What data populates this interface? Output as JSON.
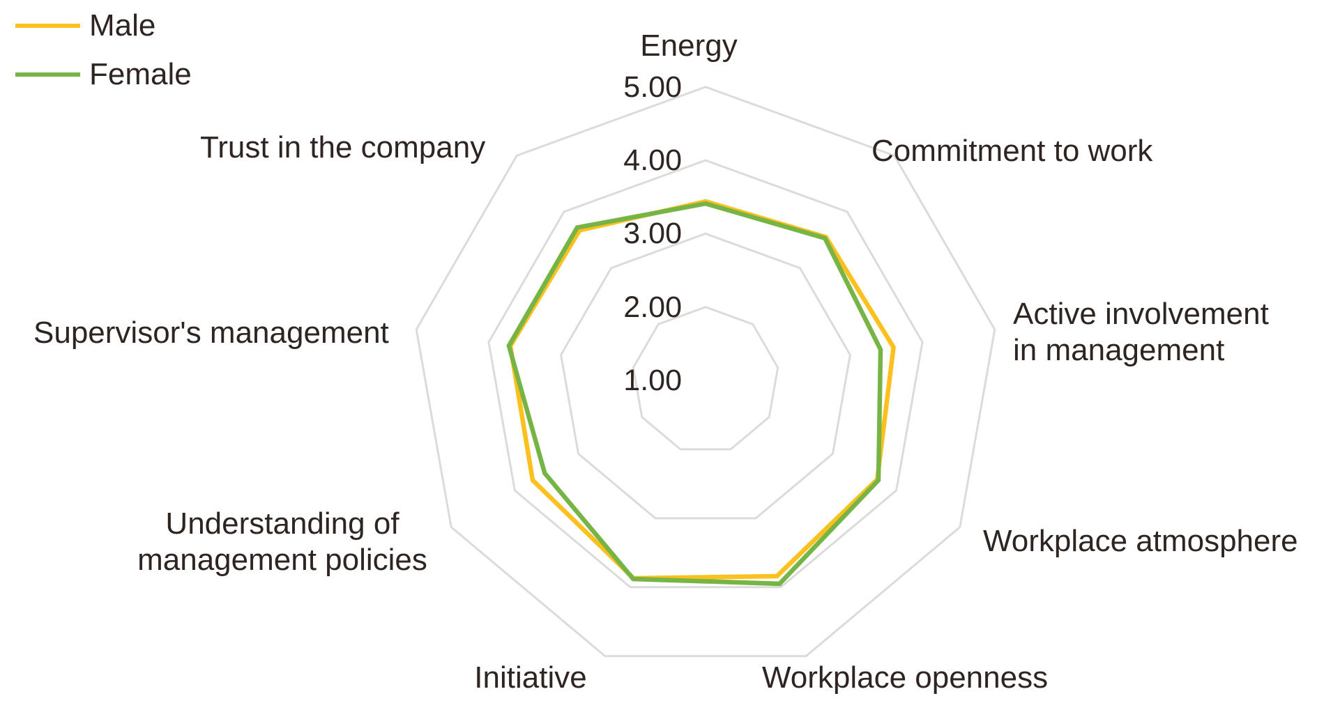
{
  "chart_data": {
    "type": "radar",
    "title": "",
    "legend_position": "top-left",
    "grid": "concentric-nonagon-rings, no radial spokes",
    "grid_color": "#DBDBDB",
    "text_color": "#2E2522",
    "background_color": "#FFFFFF",
    "categories": [
      {
        "name": "Energy",
        "lines": [
          "Energy"
        ]
      },
      {
        "name": "Commitment to work",
        "lines": [
          "Commitment to work"
        ]
      },
      {
        "name": "Active involvement in management",
        "lines": [
          "Active involvement",
          "in management"
        ]
      },
      {
        "name": "Workplace atmosphere",
        "lines": [
          "Workplace atmosphere"
        ]
      },
      {
        "name": "Workplace openness",
        "lines": [
          "Workplace openness"
        ]
      },
      {
        "name": "Initiative",
        "lines": [
          "Initiative"
        ]
      },
      {
        "name": "Understanding of management policies",
        "lines": [
          "Understanding of",
          "management policies"
        ]
      },
      {
        "name": "Supervisor's management",
        "lines": [
          "Supervisor's management"
        ]
      },
      {
        "name": "Trust in the company",
        "lines": [
          "Trust in the company"
        ]
      }
    ],
    "series": [
      {
        "name": "Male",
        "color": "#FCC11F",
        "values": [
          3.44,
          3.55,
          3.6,
          3.7,
          3.84,
          3.87,
          3.72,
          3.7,
          3.67
        ]
      },
      {
        "name": "Female",
        "color": "#76B445",
        "values": [
          3.41,
          3.53,
          3.42,
          3.72,
          3.95,
          3.88,
          3.53,
          3.72,
          3.72
        ]
      }
    ],
    "radial_axis": {
      "min": 1,
      "max": 5,
      "tick_labels": [
        "5.00",
        "4.00",
        "3.00",
        "2.00",
        "1.00"
      ],
      "tick_values": [
        5,
        4,
        3,
        2,
        1
      ],
      "grid_ring_values": [
        2,
        3,
        4,
        5
      ]
    }
  }
}
